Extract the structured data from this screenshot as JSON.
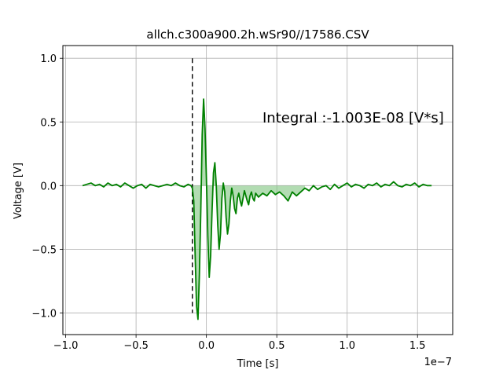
{
  "chart_data": {
    "type": "line",
    "title": "allch.c300a900.2h.wSr90//17586.CSV",
    "xlabel": "Time [s]",
    "ylabel": "Voltage [V]",
    "x_offset_label": "1e−7",
    "annotation": "Integral :-1.003E-08 [V*s]",
    "grid": true,
    "xlim": [
      -1.02,
      1.75
    ],
    "ylim": [
      -1.17,
      1.1
    ],
    "x_ticks": [
      -1.0,
      -0.5,
      0.0,
      0.5,
      1.0,
      1.5
    ],
    "x_tick_labels": [
      "−1.0",
      "−0.5",
      "0.0",
      "0.5",
      "1.0",
      "1.5"
    ],
    "y_ticks": [
      -1.0,
      -0.5,
      0.0,
      0.5,
      1.0
    ],
    "y_tick_labels": [
      "−1.0",
      "−0.5",
      "0.0",
      "0.5",
      "1.0"
    ],
    "trigger_line": {
      "x": -0.1,
      "y_from": -1.0,
      "y_to": 1.0,
      "color": "#000000"
    },
    "line_color": "#008000",
    "fill_color": "#7fc47f",
    "fill_range": [
      -0.1,
      0.7
    ],
    "series": [
      {
        "x": [
          -0.88,
          -0.85,
          -0.82,
          -0.79,
          -0.76,
          -0.73,
          -0.7,
          -0.67,
          -0.64,
          -0.61,
          -0.58,
          -0.55,
          -0.52,
          -0.49,
          -0.46,
          -0.43,
          -0.4,
          -0.37,
          -0.34,
          -0.31,
          -0.28,
          -0.25,
          -0.22,
          -0.19,
          -0.16,
          -0.13,
          -0.11,
          -0.1,
          -0.09,
          -0.08,
          -0.07,
          -0.06,
          -0.05,
          -0.04,
          -0.03,
          -0.02,
          -0.01,
          0.0,
          0.01,
          0.02,
          0.03,
          0.04,
          0.05,
          0.06,
          0.07,
          0.08,
          0.09,
          0.1,
          0.11,
          0.12,
          0.13,
          0.14,
          0.15,
          0.16,
          0.17,
          0.18,
          0.19,
          0.2,
          0.21,
          0.22,
          0.23,
          0.24,
          0.25,
          0.26,
          0.27,
          0.28,
          0.29,
          0.3,
          0.31,
          0.32,
          0.33,
          0.34,
          0.35,
          0.37,
          0.4,
          0.43,
          0.46,
          0.49,
          0.52,
          0.55,
          0.58,
          0.61,
          0.64,
          0.67,
          0.7,
          0.73,
          0.76,
          0.79,
          0.82,
          0.85,
          0.88,
          0.91,
          0.94,
          0.97,
          1.0,
          1.03,
          1.06,
          1.09,
          1.12,
          1.15,
          1.18,
          1.21,
          1.24,
          1.27,
          1.3,
          1.33,
          1.36,
          1.39,
          1.42,
          1.45,
          1.48,
          1.51,
          1.54,
          1.57,
          1.6
        ],
        "y": [
          0.0,
          0.01,
          0.02,
          0.0,
          0.01,
          -0.01,
          0.02,
          0.0,
          0.01,
          -0.01,
          0.02,
          0.0,
          -0.02,
          0.0,
          0.01,
          -0.02,
          0.01,
          0.0,
          -0.01,
          0.0,
          0.01,
          0.0,
          0.02,
          0.0,
          -0.01,
          0.01,
          0.0,
          -0.02,
          -0.12,
          -0.55,
          -0.95,
          -1.05,
          -0.7,
          -0.2,
          0.4,
          0.68,
          0.45,
          0.05,
          -0.4,
          -0.72,
          -0.55,
          -0.2,
          0.1,
          0.18,
          0.0,
          -0.3,
          -0.5,
          -0.38,
          -0.1,
          0.02,
          -0.05,
          -0.25,
          -0.38,
          -0.3,
          -0.12,
          -0.02,
          -0.08,
          -0.18,
          -0.22,
          -0.1,
          -0.06,
          -0.12,
          -0.16,
          -0.1,
          -0.04,
          -0.08,
          -0.12,
          -0.15,
          -0.08,
          -0.05,
          -0.1,
          -0.12,
          -0.06,
          -0.09,
          -0.06,
          -0.08,
          -0.04,
          -0.07,
          -0.05,
          -0.08,
          -0.12,
          -0.05,
          -0.08,
          -0.05,
          -0.02,
          -0.04,
          0.0,
          -0.03,
          -0.01,
          0.0,
          -0.03,
          0.01,
          -0.02,
          0.0,
          0.02,
          -0.01,
          0.01,
          0.0,
          -0.02,
          0.01,
          0.0,
          0.02,
          -0.01,
          0.01,
          0.0,
          0.03,
          0.0,
          -0.01,
          0.01,
          0.0,
          0.02,
          -0.01,
          0.01,
          0.0,
          0.0
        ]
      }
    ]
  }
}
